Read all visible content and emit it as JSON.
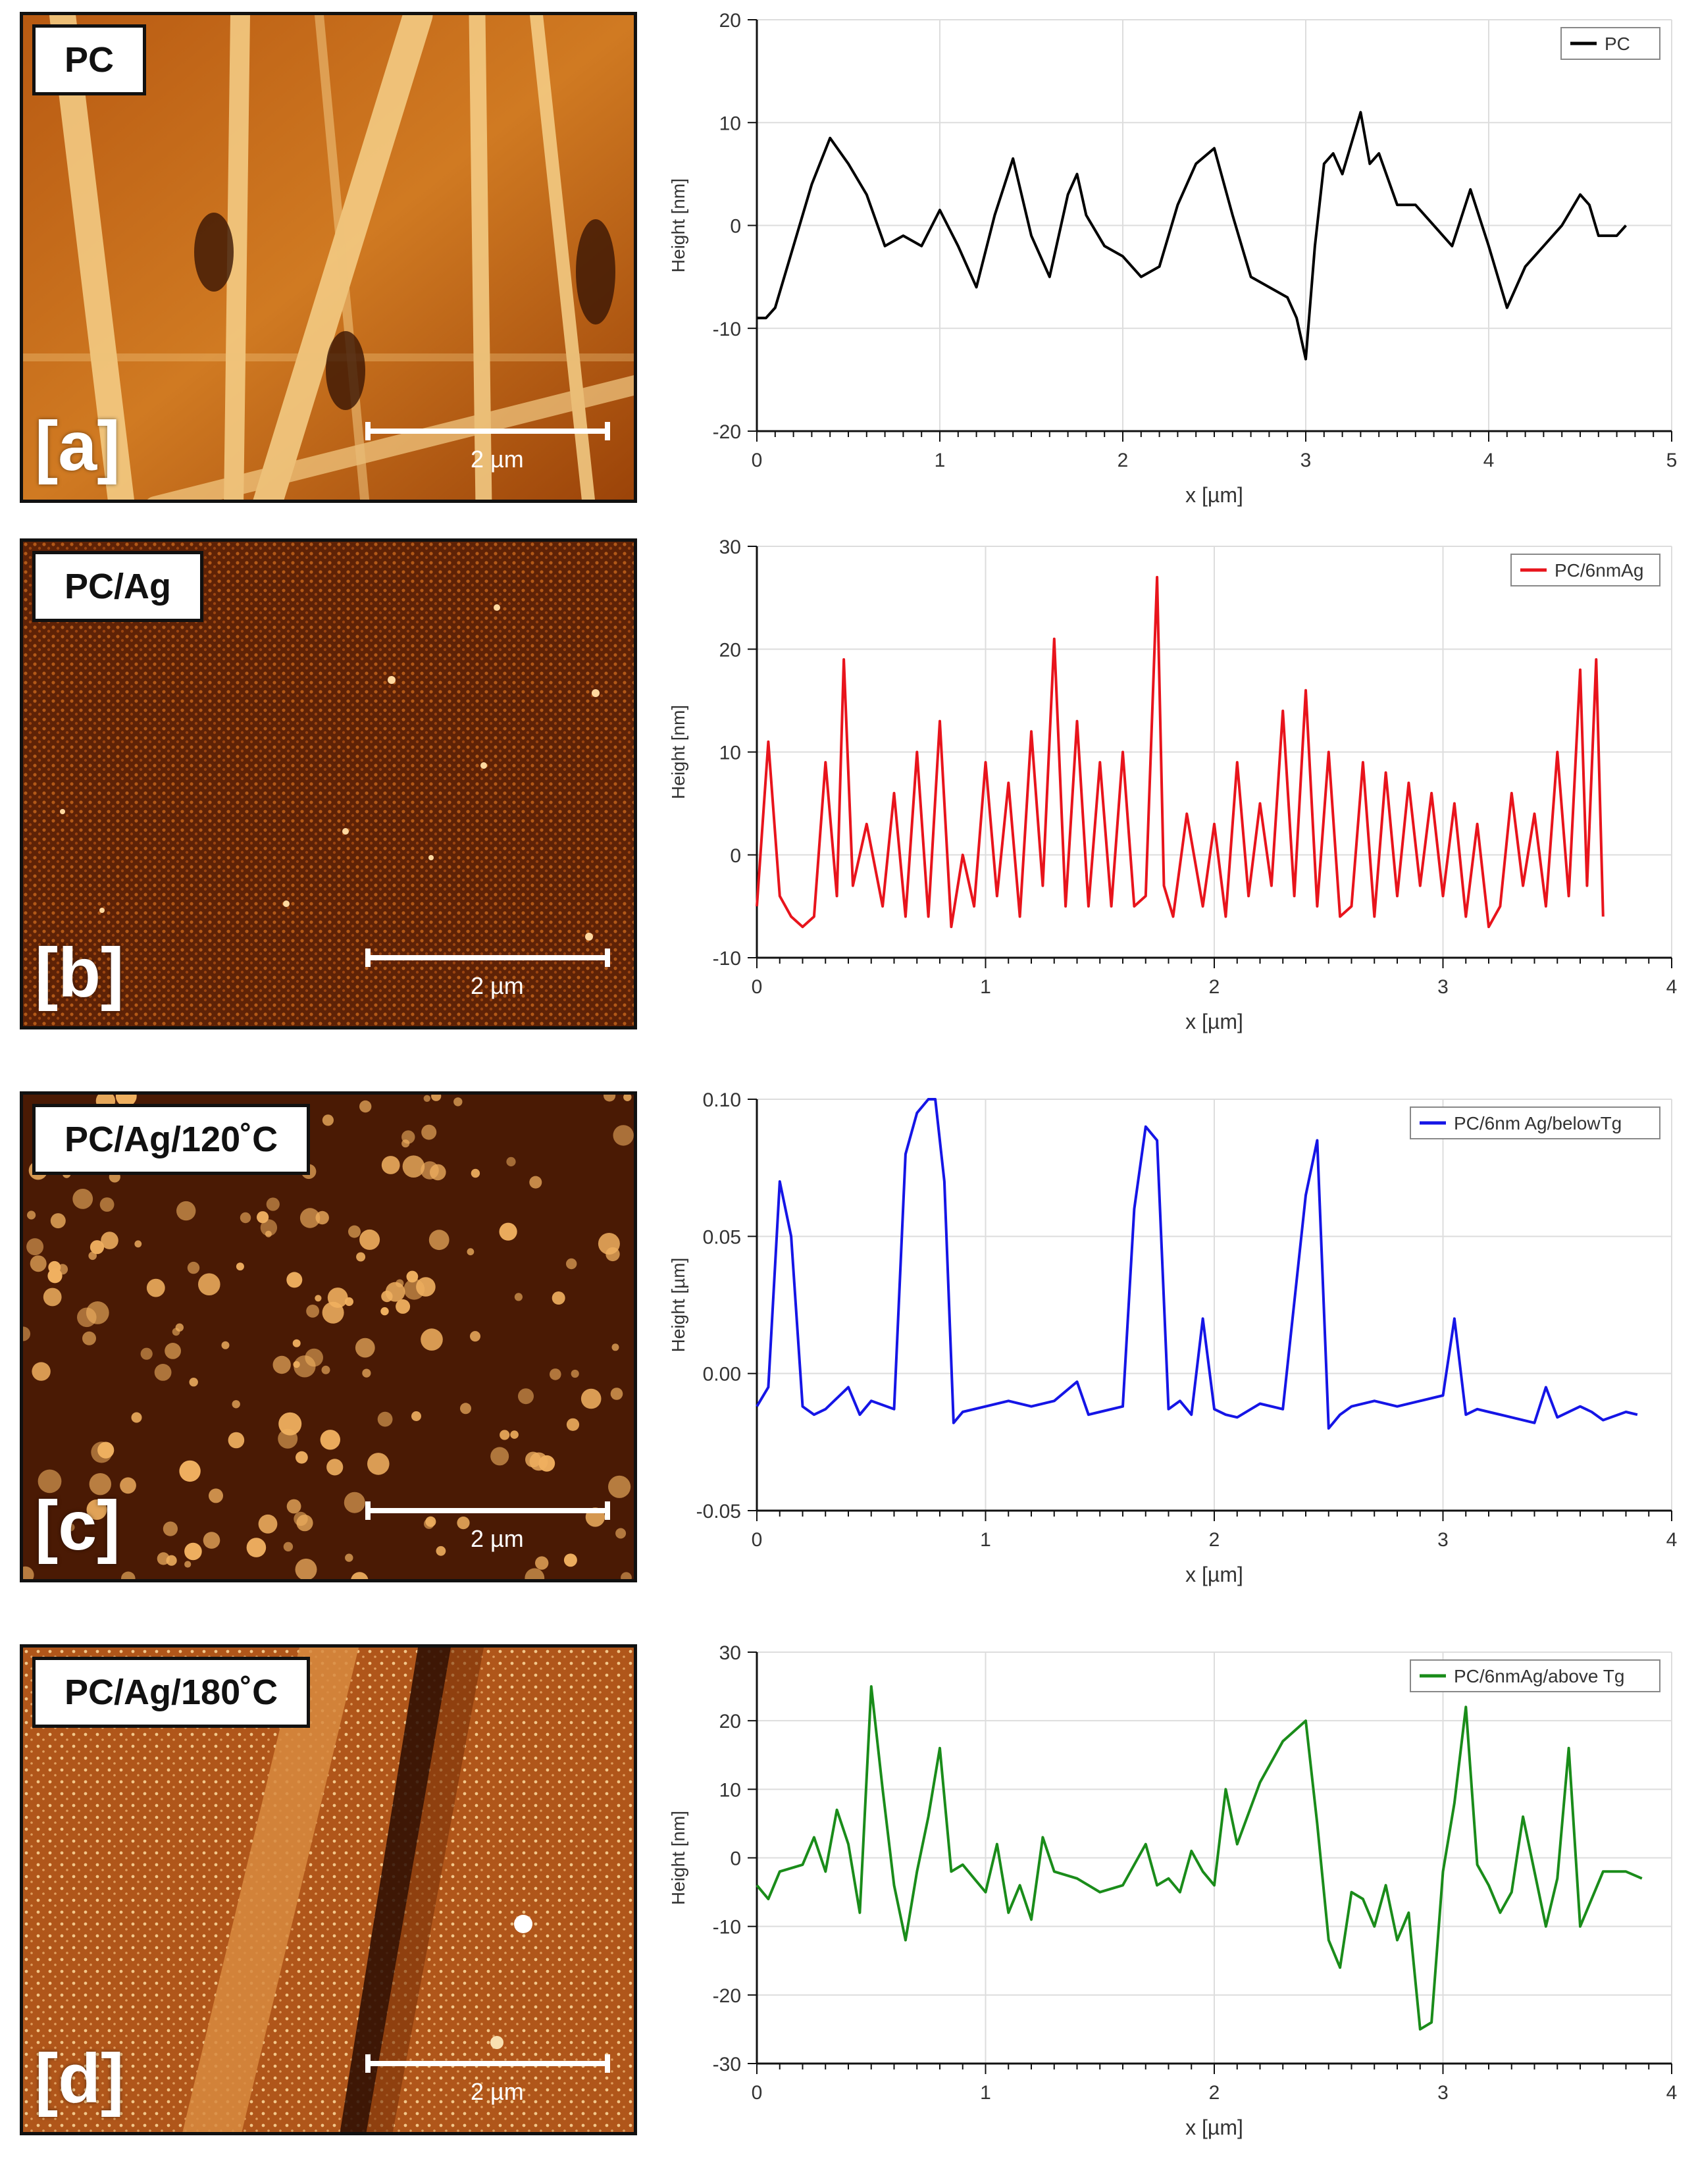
{
  "panels": [
    {
      "label": "PC",
      "letter": "[a]",
      "scale_text": "2 µm",
      "chart_data": {
        "type": "line",
        "xlabel": "x [µm]",
        "ylabel": "Height [nm]",
        "xlim": [
          0,
          5
        ],
        "ylim": [
          -20,
          20
        ],
        "xticks": [
          "0",
          "1",
          "2",
          "3",
          "4",
          "5"
        ],
        "yticks": [
          "20",
          "10",
          "0",
          "-10",
          "-20"
        ],
        "series": [
          {
            "name": "PC",
            "color": "#000000",
            "x": [
              0,
              0.05,
              0.1,
              0.2,
              0.3,
              0.4,
              0.5,
              0.6,
              0.7,
              0.8,
              0.9,
              1.0,
              1.1,
              1.2,
              1.3,
              1.4,
              1.5,
              1.6,
              1.7,
              1.75,
              1.8,
              1.9,
              2.0,
              2.1,
              2.2,
              2.3,
              2.4,
              2.5,
              2.6,
              2.7,
              2.8,
              2.9,
              2.95,
              3.0,
              3.05,
              3.1,
              3.15,
              3.2,
              3.3,
              3.35,
              3.4,
              3.5,
              3.6,
              3.7,
              3.8,
              3.9,
              4.0,
              4.1,
              4.2,
              4.3,
              4.4,
              4.5,
              4.55,
              4.6,
              4.7,
              4.75
            ],
            "y": [
              -9,
              -9,
              -8,
              -2,
              4,
              8.5,
              6,
              3,
              -2,
              -1,
              -2,
              1.5,
              -2,
              -6,
              1,
              6.5,
              -1,
              -5,
              3,
              5,
              1,
              -2,
              -3,
              -5,
              -4,
              2,
              6,
              7.5,
              1,
              -5,
              -6,
              -7,
              -9,
              -13,
              -2,
              6,
              7,
              5,
              11,
              6,
              7,
              2,
              2,
              0,
              -2,
              3.5,
              -2,
              -8,
              -4,
              -2,
              0,
              3,
              2,
              -1,
              -1,
              0
            ]
          }
        ]
      }
    },
    {
      "label": "PC/Ag",
      "letter": "[b]",
      "scale_text": "2 µm",
      "chart_data": {
        "type": "line",
        "xlabel": "x [µm]",
        "ylabel": "Height [nm]",
        "xlim": [
          0,
          4
        ],
        "ylim": [
          -10,
          30
        ],
        "xticks": [
          "0",
          "1",
          "2",
          "3",
          "4"
        ],
        "yticks": [
          "30",
          "20",
          "10",
          "0",
          "-10"
        ],
        "series": [
          {
            "name": "PC/6nmAg",
            "color": "#e8141c",
            "x": [
              0,
              0.05,
              0.1,
              0.15,
              0.2,
              0.25,
              0.3,
              0.35,
              0.38,
              0.42,
              0.48,
              0.55,
              0.6,
              0.65,
              0.7,
              0.75,
              0.8,
              0.85,
              0.9,
              0.95,
              1.0,
              1.05,
              1.1,
              1.15,
              1.2,
              1.25,
              1.3,
              1.35,
              1.4,
              1.45,
              1.5,
              1.55,
              1.6,
              1.65,
              1.7,
              1.75,
              1.78,
              1.82,
              1.88,
              1.95,
              2.0,
              2.05,
              2.1,
              2.15,
              2.2,
              2.25,
              2.3,
              2.35,
              2.4,
              2.45,
              2.5,
              2.55,
              2.6,
              2.65,
              2.7,
              2.75,
              2.8,
              2.85,
              2.9,
              2.95,
              3.0,
              3.05,
              3.1,
              3.15,
              3.2,
              3.25,
              3.3,
              3.35,
              3.4,
              3.45,
              3.5,
              3.55,
              3.6,
              3.63,
              3.67,
              3.7
            ],
            "y": [
              -5,
              11,
              -4,
              -6,
              -7,
              -6,
              9,
              -4,
              19,
              -3,
              3,
              -5,
              6,
              -6,
              10,
              -6,
              13,
              -7,
              0,
              -5,
              9,
              -4,
              7,
              -6,
              12,
              -3,
              21,
              -5,
              13,
              -5,
              9,
              -5,
              10,
              -5,
              -4,
              27,
              -3,
              -6,
              4,
              -5,
              3,
              -6,
              9,
              -4,
              5,
              -3,
              14,
              -4,
              16,
              -5,
              10,
              -6,
              -5,
              9,
              -6,
              8,
              -4,
              7,
              -3,
              6,
              -4,
              5,
              -6,
              3,
              -7,
              -5,
              6,
              -3,
              4,
              -5,
              10,
              -4,
              18,
              -3,
              19,
              -6
            ]
          }
        ]
      }
    },
    {
      "label": "PC/Ag/120˚C",
      "letter": "[c]",
      "scale_text": "2 µm",
      "chart_data": {
        "type": "line",
        "xlabel": "x [µm]",
        "ylabel": "Height [µm]",
        "xlim": [
          0,
          4
        ],
        "ylim": [
          -0.05,
          0.1
        ],
        "xticks": [
          "0",
          "1",
          "2",
          "3",
          "4"
        ],
        "yticks": [
          "0.10",
          "0.05",
          "0.00",
          "-0.05"
        ],
        "series": [
          {
            "name": "PC/6nm Ag/belowTg",
            "color": "#1515e6",
            "x": [
              0,
              0.05,
              0.1,
              0.15,
              0.2,
              0.25,
              0.3,
              0.4,
              0.45,
              0.5,
              0.6,
              0.65,
              0.7,
              0.75,
              0.78,
              0.82,
              0.86,
              0.9,
              1.0,
              1.1,
              1.2,
              1.3,
              1.4,
              1.45,
              1.5,
              1.6,
              1.65,
              1.7,
              1.75,
              1.8,
              1.85,
              1.9,
              1.95,
              2.0,
              2.05,
              2.1,
              2.2,
              2.3,
              2.4,
              2.45,
              2.5,
              2.55,
              2.6,
              2.7,
              2.8,
              2.9,
              3.0,
              3.05,
              3.1,
              3.15,
              3.2,
              3.3,
              3.4,
              3.45,
              3.5,
              3.6,
              3.65,
              3.7,
              3.8,
              3.85
            ],
            "y": [
              -0.012,
              -0.005,
              0.07,
              0.05,
              -0.012,
              -0.015,
              -0.013,
              -0.005,
              -0.015,
              -0.01,
              -0.013,
              0.08,
              0.095,
              0.1,
              0.1,
              0.07,
              -0.018,
              -0.014,
              -0.012,
              -0.01,
              -0.012,
              -0.01,
              -0.003,
              -0.015,
              -0.014,
              -0.012,
              0.06,
              0.09,
              0.085,
              -0.013,
              -0.01,
              -0.015,
              0.02,
              -0.013,
              -0.015,
              -0.016,
              -0.011,
              -0.013,
              0.065,
              0.085,
              -0.02,
              -0.015,
              -0.012,
              -0.01,
              -0.012,
              -0.01,
              -0.008,
              0.02,
              -0.015,
              -0.013,
              -0.014,
              -0.016,
              -0.018,
              -0.005,
              -0.016,
              -0.012,
              -0.014,
              -0.017,
              -0.014,
              -0.015
            ]
          }
        ]
      }
    },
    {
      "label": "PC/Ag/180˚C",
      "letter": "[d]",
      "scale_text": "2 µm",
      "chart_data": {
        "type": "line",
        "xlabel": "x [µm]",
        "ylabel": "Height [nm]",
        "xlim": [
          0,
          4
        ],
        "ylim": [
          -30,
          30
        ],
        "xticks": [
          "0",
          "1",
          "2",
          "3",
          "4"
        ],
        "yticks": [
          "30",
          "20",
          "10",
          "0",
          "-10",
          "-20",
          "-30"
        ],
        "series": [
          {
            "name": "PC/6nmAg/above Tg",
            "color": "#1a8c1a",
            "x": [
              0,
              0.05,
              0.1,
              0.2,
              0.25,
              0.3,
              0.35,
              0.4,
              0.45,
              0.5,
              0.55,
              0.6,
              0.65,
              0.7,
              0.75,
              0.8,
              0.85,
              0.9,
              0.95,
              1.0,
              1.05,
              1.1,
              1.15,
              1.2,
              1.25,
              1.3,
              1.4,
              1.5,
              1.6,
              1.7,
              1.75,
              1.8,
              1.85,
              1.9,
              1.95,
              2.0,
              2.05,
              2.1,
              2.2,
              2.3,
              2.4,
              2.45,
              2.5,
              2.55,
              2.6,
              2.65,
              2.7,
              2.75,
              2.8,
              2.85,
              2.9,
              2.95,
              3.0,
              3.05,
              3.1,
              3.15,
              3.2,
              3.25,
              3.3,
              3.35,
              3.4,
              3.45,
              3.5,
              3.55,
              3.6,
              3.7,
              3.8,
              3.87
            ],
            "y": [
              -4,
              -6,
              -2,
              -1,
              3,
              -2,
              7,
              2,
              -8,
              25,
              10,
              -4,
              -12,
              -2,
              6,
              16,
              -2,
              -1,
              -3,
              -5,
              2,
              -8,
              -4,
              -9,
              3,
              -2,
              -3,
              -5,
              -4,
              2,
              -4,
              -3,
              -5,
              1,
              -2,
              -4,
              10,
              2,
              11,
              17,
              20,
              5,
              -12,
              -16,
              -5,
              -6,
              -10,
              -4,
              -12,
              -8,
              -25,
              -24,
              -2,
              8,
              22,
              -1,
              -4,
              -8,
              -5,
              6,
              -2,
              -10,
              -3,
              16,
              -10,
              -2,
              -2,
              -3
            ]
          }
        ]
      }
    }
  ]
}
